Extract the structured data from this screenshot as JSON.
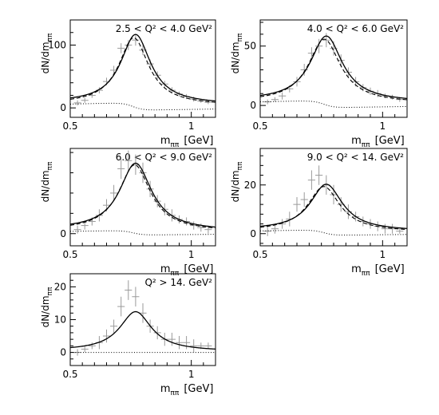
{
  "chart_data": [
    {
      "type": "scatter",
      "panel_label": "2.5 < Q² < 4.0 GeV²",
      "xlabel_main": "m",
      "xlabel_sub": "ππ",
      "xlabel_unit": "[GeV]",
      "ylabel_main": "dN/dm",
      "ylabel_sub": "ππ",
      "xlim": [
        0.5,
        1.1
      ],
      "ylim": [
        -15,
        140
      ],
      "xticks": [
        {
          "v": 0.5,
          "label": "0.5"
        },
        {
          "v": 1.0,
          "label": "1"
        }
      ],
      "yticks": [
        {
          "v": 0,
          "label": "0"
        },
        {
          "v": 100,
          "label": "100"
        }
      ],
      "curve_params": {
        "m0": 0.77,
        "gamma": 0.15,
        "peak": 110,
        "base": 8,
        "dash_shift": 0.008,
        "dash_scale": 0.97,
        "dotted_amp": 8
      },
      "points": [
        [
          0.53,
          8,
          4
        ],
        [
          0.56,
          12,
          4
        ],
        [
          0.59,
          20,
          4
        ],
        [
          0.62,
          28,
          5
        ],
        [
          0.65,
          42,
          6
        ],
        [
          0.68,
          60,
          7
        ],
        [
          0.71,
          95,
          8
        ],
        [
          0.74,
          100,
          8
        ],
        [
          0.77,
          108,
          9
        ],
        [
          0.8,
          92,
          8
        ],
        [
          0.83,
          70,
          7
        ],
        [
          0.86,
          52,
          6
        ],
        [
          0.89,
          38,
          5
        ],
        [
          0.92,
          28,
          5
        ],
        [
          0.95,
          22,
          4
        ],
        [
          0.98,
          18,
          4
        ],
        [
          1.01,
          14,
          4
        ],
        [
          1.04,
          11,
          3
        ],
        [
          1.07,
          9,
          3
        ]
      ]
    },
    {
      "type": "scatter",
      "panel_label": "4.0 < Q² < 6.0 GeV²",
      "xlabel_main": "m",
      "xlabel_sub": "ππ",
      "xlabel_unit": "[GeV]",
      "ylabel_main": "dN/dm",
      "ylabel_sub": "ππ",
      "xlim": [
        0.5,
        1.1
      ],
      "ylim": [
        -10,
        72
      ],
      "xticks": [
        {
          "v": 0.5,
          "label": "0.5"
        },
        {
          "v": 1.0,
          "label": "1"
        }
      ],
      "yticks": [
        {
          "v": 0,
          "label": "0"
        },
        {
          "v": 50,
          "label": "50"
        }
      ],
      "curve_params": {
        "m0": 0.77,
        "gamma": 0.16,
        "peak": 55,
        "base": 4,
        "dash_shift": 0.008,
        "dash_scale": 0.97,
        "dotted_amp": 4
      },
      "points": [
        [
          0.53,
          3,
          2
        ],
        [
          0.56,
          5,
          2
        ],
        [
          0.59,
          8,
          3
        ],
        [
          0.62,
          14,
          3
        ],
        [
          0.65,
          20,
          4
        ],
        [
          0.68,
          30,
          5
        ],
        [
          0.71,
          44,
          5
        ],
        [
          0.74,
          50,
          6
        ],
        [
          0.77,
          55,
          6
        ],
        [
          0.8,
          48,
          6
        ],
        [
          0.83,
          38,
          5
        ],
        [
          0.86,
          28,
          4
        ],
        [
          0.89,
          20,
          4
        ],
        [
          0.92,
          15,
          3
        ],
        [
          0.95,
          12,
          3
        ],
        [
          0.98,
          10,
          3
        ],
        [
          1.01,
          8,
          2
        ],
        [
          1.04,
          7,
          2
        ],
        [
          1.07,
          5,
          2
        ]
      ]
    },
    {
      "type": "scatter",
      "panel_label": "6.0 < Q² < 9.0 GeV²",
      "xlabel_main": "m",
      "xlabel_sub": "ππ",
      "xlabel_unit": "[GeV]",
      "ylabel_main": "dN/dm",
      "ylabel_sub": "ππ",
      "xlim": [
        0.5,
        1.1
      ],
      "ylim": [
        -6,
        42
      ],
      "xticks": [
        {
          "v": 0.5,
          "label": "0.5"
        },
        {
          "v": 1.0,
          "label": "1"
        }
      ],
      "yticks": [
        {
          "v": 0,
          "label": "0"
        }
      ],
      "curve_params": {
        "m0": 0.77,
        "gamma": 0.16,
        "peak": 33,
        "base": 2,
        "dash_shift": 0.004,
        "dash_scale": 0.99,
        "dotted_amp": 1.5
      },
      "points": [
        [
          0.53,
          2,
          2
        ],
        [
          0.56,
          4,
          2
        ],
        [
          0.59,
          6,
          2
        ],
        [
          0.62,
          9,
          3
        ],
        [
          0.65,
          14,
          3
        ],
        [
          0.68,
          20,
          4
        ],
        [
          0.71,
          32,
          5
        ],
        [
          0.74,
          36,
          5
        ],
        [
          0.77,
          34,
          5
        ],
        [
          0.8,
          30,
          5
        ],
        [
          0.83,
          22,
          4
        ],
        [
          0.86,
          16,
          3
        ],
        [
          0.89,
          12,
          3
        ],
        [
          0.92,
          9,
          3
        ],
        [
          0.95,
          7,
          2
        ],
        [
          0.98,
          6,
          2
        ],
        [
          1.01,
          4,
          2
        ],
        [
          1.04,
          3,
          2
        ],
        [
          1.07,
          2,
          2
        ]
      ]
    },
    {
      "type": "scatter",
      "panel_label": "9.0 < Q² < 14. GeV²",
      "xlabel_main": "m",
      "xlabel_sub": "ππ",
      "xlabel_unit": "[GeV]",
      "ylabel_main": "dN/dm",
      "ylabel_sub": "ππ",
      "xlim": [
        0.5,
        1.1
      ],
      "ylim": [
        -5,
        35
      ],
      "xticks": [
        {
          "v": 0.5,
          "label": "0.5"
        },
        {
          "v": 1.0,
          "label": "1"
        }
      ],
      "yticks": [
        {
          "v": 0,
          "label": "0"
        },
        {
          "v": 20,
          "label": "20"
        }
      ],
      "curve_params": {
        "m0": 0.77,
        "gamma": 0.16,
        "peak": 19,
        "base": 1.5,
        "dash_shift": 0.01,
        "dash_scale": 0.97,
        "dotted_amp": 1.5
      },
      "points": [
        [
          0.53,
          1,
          2
        ],
        [
          0.56,
          2,
          2
        ],
        [
          0.59,
          4,
          2
        ],
        [
          0.62,
          6,
          3
        ],
        [
          0.65,
          12,
          3
        ],
        [
          0.68,
          14,
          3
        ],
        [
          0.71,
          22,
          4
        ],
        [
          0.74,
          24,
          4
        ],
        [
          0.77,
          20,
          4
        ],
        [
          0.8,
          16,
          4
        ],
        [
          0.83,
          12,
          3
        ],
        [
          0.86,
          9,
          3
        ],
        [
          0.89,
          7,
          2
        ],
        [
          0.92,
          5,
          2
        ],
        [
          0.95,
          4,
          2
        ],
        [
          0.98,
          3,
          2
        ],
        [
          1.01,
          2,
          2
        ],
        [
          1.04,
          2,
          2
        ],
        [
          1.07,
          1,
          1
        ]
      ]
    },
    {
      "type": "scatter",
      "panel_label": "Q² > 14. GeV²",
      "xlabel_main": "m",
      "xlabel_sub": "ππ",
      "xlabel_unit": "[GeV]",
      "ylabel_main": "dN/dm",
      "ylabel_sub": "ππ",
      "xlim": [
        0.5,
        1.1
      ],
      "ylim": [
        -4,
        24
      ],
      "xticks": [
        {
          "v": 0.5,
          "label": "0.5"
        },
        {
          "v": 1.0,
          "label": "1"
        }
      ],
      "yticks": [
        {
          "v": 0,
          "label": "0"
        },
        {
          "v": 10,
          "label": "10"
        },
        {
          "v": 20,
          "label": "20"
        }
      ],
      "curve_params": {
        "m0": 0.77,
        "gamma": 0.16,
        "peak": 12,
        "base": 0.5,
        "dash_shift": 0,
        "dash_scale": 0,
        "dotted_amp": 0
      },
      "points": [
        [
          0.53,
          0,
          1
        ],
        [
          0.56,
          1,
          1
        ],
        [
          0.59,
          2,
          1
        ],
        [
          0.62,
          3,
          2
        ],
        [
          0.65,
          5,
          2
        ],
        [
          0.68,
          8,
          2
        ],
        [
          0.71,
          14,
          3
        ],
        [
          0.74,
          19,
          3
        ],
        [
          0.77,
          17,
          3
        ],
        [
          0.8,
          12,
          3
        ],
        [
          0.83,
          8,
          2
        ],
        [
          0.86,
          6,
          2
        ],
        [
          0.89,
          4,
          2
        ],
        [
          0.92,
          4,
          2
        ],
        [
          0.95,
          3,
          2
        ],
        [
          0.98,
          3,
          2
        ],
        [
          1.01,
          2,
          2
        ],
        [
          1.04,
          2,
          1
        ],
        [
          1.07,
          2,
          1
        ]
      ]
    }
  ]
}
